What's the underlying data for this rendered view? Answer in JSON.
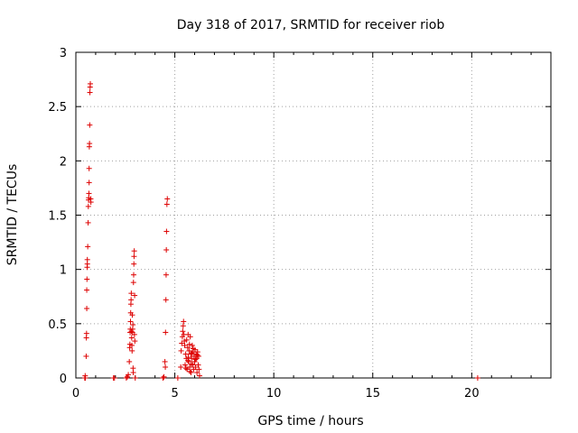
{
  "chart_data": {
    "type": "scatter",
    "title": "Day 318 of 2017, SRMTID for receiver riob",
    "xlabel": "GPS time / hours",
    "ylabel": "SRMTID / TECUs",
    "xlim": [
      0,
      24
    ],
    "ylim": [
      0,
      3
    ],
    "x_ticks": [
      0,
      5,
      10,
      15,
      20
    ],
    "x_tick_labels": [
      "0",
      "5",
      "10",
      "15",
      "20"
    ],
    "y_ticks": [
      0,
      0.5,
      1,
      1.5,
      2,
      2.5,
      3
    ],
    "y_tick_labels": [
      "0",
      "0.5",
      "1",
      "1.5",
      "2",
      "2.5",
      "3"
    ],
    "grid": true,
    "marker": "+",
    "marker_color": "#dd0000",
    "series": [
      {
        "name": "SRMTID",
        "points": [
          [
            0.45,
            0.0
          ],
          [
            0.47,
            0.02
          ],
          [
            0.48,
            0.0
          ],
          [
            0.52,
            0.2
          ],
          [
            0.53,
            0.37
          ],
          [
            0.54,
            0.41
          ],
          [
            0.55,
            0.64
          ],
          [
            0.55,
            0.81
          ],
          [
            0.56,
            0.91
          ],
          [
            0.57,
            1.02
          ],
          [
            0.58,
            1.05
          ],
          [
            0.58,
            1.09
          ],
          [
            0.6,
            1.21
          ],
          [
            0.62,
            1.43
          ],
          [
            0.63,
            1.58
          ],
          [
            0.64,
            1.64
          ],
          [
            0.65,
            1.66
          ],
          [
            0.66,
            1.7
          ],
          [
            0.67,
            1.8
          ],
          [
            0.67,
            1.93
          ],
          [
            0.68,
            2.13
          ],
          [
            0.69,
            2.16
          ],
          [
            0.7,
            2.33
          ],
          [
            0.71,
            2.63
          ],
          [
            0.72,
            2.68
          ],
          [
            0.73,
            2.71
          ],
          [
            0.75,
            1.65
          ],
          [
            0.76,
            1.62
          ],
          [
            1.9,
            0.0
          ],
          [
            1.95,
            0.0
          ],
          [
            2.55,
            0.0
          ],
          [
            2.6,
            0.01
          ],
          [
            2.65,
            0.03
          ],
          [
            2.7,
            0.15
          ],
          [
            2.72,
            0.28
          ],
          [
            2.73,
            0.31
          ],
          [
            2.74,
            0.42
          ],
          [
            2.75,
            0.45
          ],
          [
            2.76,
            0.52
          ],
          [
            2.77,
            0.6
          ],
          [
            2.78,
            0.68
          ],
          [
            2.79,
            0.72
          ],
          [
            2.8,
            0.78
          ],
          [
            2.81,
            0.43
          ],
          [
            2.82,
            0.37
          ],
          [
            2.83,
            0.3
          ],
          [
            2.84,
            0.25
          ],
          [
            2.85,
            0.58
          ],
          [
            2.86,
            0.42
          ],
          [
            2.87,
            0.45
          ],
          [
            2.88,
            0.49
          ],
          [
            2.89,
            0.09
          ],
          [
            2.9,
            0.05
          ],
          [
            2.91,
            0.88
          ],
          [
            2.92,
            0.95
          ],
          [
            2.93,
            1.05
          ],
          [
            2.94,
            1.12
          ],
          [
            2.95,
            1.17
          ],
          [
            2.96,
            0.4
          ],
          [
            2.97,
            0.76
          ],
          [
            2.98,
            0.34
          ],
          [
            3.0,
            0.0
          ],
          [
            4.4,
            0.0
          ],
          [
            4.45,
            0.01
          ],
          [
            4.5,
            0.15
          ],
          [
            4.52,
            0.1
          ],
          [
            4.53,
            0.42
          ],
          [
            4.55,
            0.72
          ],
          [
            4.56,
            0.95
          ],
          [
            4.57,
            1.18
          ],
          [
            4.58,
            1.35
          ],
          [
            4.6,
            1.6
          ],
          [
            4.62,
            1.65
          ],
          [
            5.15,
            0.0
          ],
          [
            5.3,
            0.1
          ],
          [
            5.32,
            0.25
          ],
          [
            5.35,
            0.32
          ],
          [
            5.38,
            0.38
          ],
          [
            5.4,
            0.43
          ],
          [
            5.42,
            0.48
          ],
          [
            5.44,
            0.52
          ],
          [
            5.46,
            0.4
          ],
          [
            5.48,
            0.34
          ],
          [
            5.5,
            0.3
          ],
          [
            5.52,
            0.12
          ],
          [
            5.55,
            0.22
          ],
          [
            5.58,
            0.18
          ],
          [
            5.6,
            0.35
          ],
          [
            5.62,
            0.08
          ],
          [
            5.65,
            0.28
          ],
          [
            5.67,
            0.4
          ],
          [
            5.7,
            0.15
          ],
          [
            5.72,
            0.25
          ],
          [
            5.75,
            0.1
          ],
          [
            5.78,
            0.38
          ],
          [
            5.8,
            0.22
          ],
          [
            5.82,
            0.05
          ],
          [
            5.85,
            0.18
          ],
          [
            5.88,
            0.3
          ],
          [
            5.9,
            0.12
          ],
          [
            5.92,
            0.24
          ],
          [
            5.95,
            0.08
          ],
          [
            5.97,
            0.2
          ],
          [
            6.0,
            0.15
          ],
          [
            6.02,
            0.26
          ],
          [
            6.05,
            0.1
          ],
          [
            6.08,
            0.22
          ],
          [
            6.1,
            0.18
          ],
          [
            6.12,
            0.05
          ],
          [
            6.15,
            0.24
          ],
          [
            6.18,
            0.12
          ],
          [
            6.2,
            0.2
          ],
          [
            6.22,
            0.08
          ],
          [
            6.25,
            0.02
          ],
          [
            5.68,
            0.19
          ],
          [
            5.74,
            0.31
          ],
          [
            5.83,
            0.13
          ],
          [
            5.93,
            0.27
          ],
          [
            6.04,
            0.17
          ],
          [
            6.14,
            0.21
          ],
          [
            5.56,
            0.09
          ],
          [
            5.66,
            0.16
          ],
          [
            5.76,
            0.06
          ],
          [
            5.86,
            0.23
          ],
          [
            20.3,
            0.0
          ]
        ]
      }
    ]
  }
}
